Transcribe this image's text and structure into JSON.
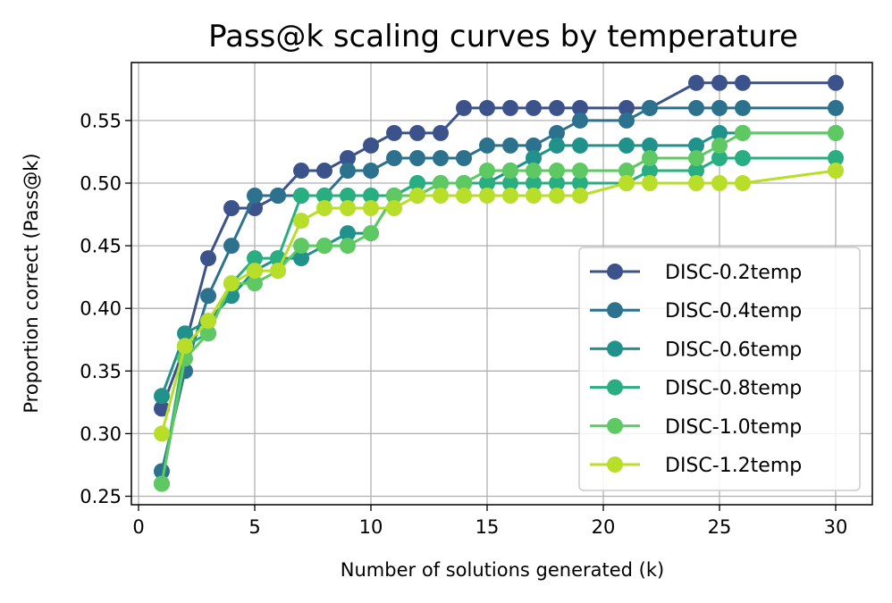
{
  "chart_data": {
    "type": "line",
    "title": "Pass@k scaling curves by temperature",
    "xlabel": "Number of solutions generated (k)",
    "ylabel": "Proportion correct (Pass@k)",
    "xlim": [
      0,
      30
    ],
    "ylim": [
      0.25,
      0.58
    ],
    "xticks": [
      0,
      5,
      10,
      15,
      20,
      25,
      30
    ],
    "yticks": [
      0.25,
      0.3,
      0.35,
      0.4,
      0.45,
      0.5,
      0.55
    ],
    "ytick_labels": [
      "0.25",
      "0.30",
      "0.35",
      "0.40",
      "0.45",
      "0.50",
      "0.55"
    ],
    "grid": true,
    "legend_position": "lower-right",
    "series": [
      {
        "name": "DISC-0.2temp",
        "color": "#3b528b",
        "x": [
          1,
          2,
          3,
          4,
          5,
          6,
          7,
          8,
          9,
          10,
          11,
          12,
          13,
          14,
          15,
          16,
          17,
          18,
          19,
          21,
          22,
          24,
          25,
          26,
          30
        ],
        "values": [
          0.32,
          0.37,
          0.44,
          0.48,
          0.48,
          0.49,
          0.51,
          0.51,
          0.52,
          0.53,
          0.54,
          0.54,
          0.54,
          0.56,
          0.56,
          0.56,
          0.56,
          0.56,
          0.56,
          0.56,
          0.56,
          0.58,
          0.58,
          0.58,
          0.58
        ]
      },
      {
        "name": "DISC-0.4temp",
        "color": "#2c728e",
        "x": [
          1,
          2,
          3,
          4,
          5,
          6,
          7,
          8,
          9,
          10,
          11,
          12,
          13,
          14,
          15,
          16,
          17,
          18,
          19,
          21,
          22,
          24,
          25,
          26,
          30
        ],
        "values": [
          0.27,
          0.35,
          0.41,
          0.45,
          0.49,
          0.49,
          0.49,
          0.49,
          0.51,
          0.51,
          0.52,
          0.52,
          0.52,
          0.52,
          0.53,
          0.53,
          0.53,
          0.54,
          0.55,
          0.55,
          0.56,
          0.56,
          0.56,
          0.56,
          0.56
        ]
      },
      {
        "name": "DISC-0.6temp",
        "color": "#21918c",
        "x": [
          1,
          2,
          3,
          4,
          5,
          6,
          7,
          8,
          9,
          10,
          11,
          12,
          13,
          14,
          15,
          16,
          17,
          18,
          19,
          21,
          22,
          24,
          25,
          26,
          30
        ],
        "values": [
          0.33,
          0.38,
          0.39,
          0.41,
          0.43,
          0.44,
          0.44,
          0.45,
          0.46,
          0.46,
          0.49,
          0.5,
          0.5,
          0.5,
          0.5,
          0.51,
          0.52,
          0.53,
          0.53,
          0.53,
          0.53,
          0.53,
          0.54,
          0.54,
          0.54
        ]
      },
      {
        "name": "DISC-0.8temp",
        "color": "#28ae80",
        "x": [
          1,
          2,
          3,
          4,
          5,
          6,
          7,
          8,
          9,
          10,
          11,
          12,
          13,
          14,
          15,
          16,
          17,
          18,
          19,
          21,
          22,
          24,
          25,
          26,
          30
        ],
        "values": [
          0.26,
          0.37,
          0.38,
          0.42,
          0.44,
          0.44,
          0.49,
          0.49,
          0.49,
          0.49,
          0.49,
          0.5,
          0.5,
          0.5,
          0.5,
          0.5,
          0.5,
          0.5,
          0.5,
          0.5,
          0.51,
          0.51,
          0.52,
          0.52,
          0.52
        ]
      },
      {
        "name": "DISC-1.0temp",
        "color": "#5ec962",
        "x": [
          1,
          2,
          3,
          4,
          5,
          6,
          7,
          8,
          9,
          10,
          11,
          12,
          13,
          14,
          15,
          16,
          17,
          18,
          19,
          21,
          22,
          24,
          25,
          26,
          30
        ],
        "values": [
          0.26,
          0.36,
          0.38,
          0.42,
          0.42,
          0.43,
          0.45,
          0.45,
          0.45,
          0.46,
          0.49,
          0.49,
          0.5,
          0.5,
          0.51,
          0.51,
          0.51,
          0.51,
          0.51,
          0.51,
          0.52,
          0.52,
          0.53,
          0.54,
          0.54
        ]
      },
      {
        "name": "DISC-1.2temp",
        "color": "#b8de29",
        "x": [
          1,
          2,
          3,
          4,
          5,
          6,
          7,
          8,
          9,
          10,
          11,
          12,
          13,
          14,
          15,
          16,
          17,
          18,
          19,
          21,
          22,
          24,
          25,
          26,
          30
        ],
        "values": [
          0.3,
          0.37,
          0.39,
          0.42,
          0.43,
          0.43,
          0.47,
          0.48,
          0.48,
          0.48,
          0.48,
          0.49,
          0.49,
          0.49,
          0.49,
          0.49,
          0.49,
          0.49,
          0.49,
          0.5,
          0.5,
          0.5,
          0.5,
          0.5,
          0.51
        ]
      }
    ]
  }
}
